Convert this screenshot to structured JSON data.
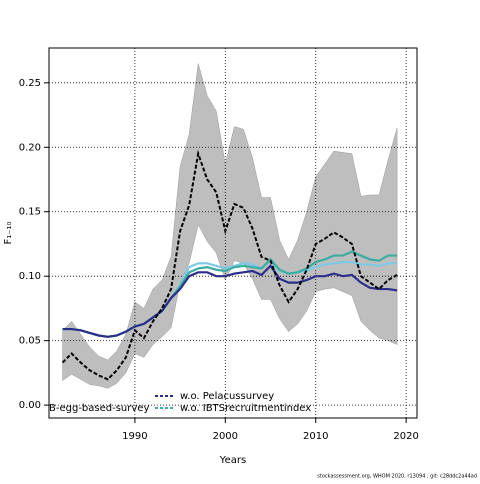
{
  "chart_data": {
    "type": "line",
    "x_label": "Years",
    "y_label": "F₁₋₁₀",
    "footer": "stockassessment.org, WHOM 2020, r13094 , git: c28ddc2a44ad",
    "x": [
      1982,
      1983,
      1984,
      1985,
      1986,
      1987,
      1988,
      1989,
      1990,
      1991,
      1992,
      1993,
      1994,
      1995,
      1996,
      1997,
      1998,
      1999,
      2000,
      2001,
      2002,
      2003,
      2004,
      2005,
      2006,
      2007,
      2008,
      2009,
      2010,
      2011,
      2012,
      2013,
      2014,
      2015,
      2016,
      2017,
      2018,
      2019
    ],
    "series": [
      {
        "color": "#000000",
        "dashed": true,
        "band_color": "#bebebe",
        "values": [
          0.033,
          0.04,
          0.033,
          0.027,
          0.023,
          0.02,
          0.027,
          0.037,
          0.058,
          0.052,
          0.065,
          0.075,
          0.09,
          0.135,
          0.155,
          0.195,
          0.175,
          0.165,
          0.135,
          0.156,
          0.153,
          0.137,
          0.115,
          0.112,
          0.093,
          0.08,
          0.09,
          0.105,
          0.125,
          0.129,
          0.134,
          0.13,
          0.125,
          0.1,
          0.095,
          0.09,
          0.097,
          0.101
        ],
        "upper": [
          0.058,
          0.065,
          0.055,
          0.045,
          0.038,
          0.035,
          0.042,
          0.055,
          0.08,
          0.075,
          0.09,
          0.097,
          0.115,
          0.185,
          0.21,
          0.265,
          0.24,
          0.228,
          0.187,
          0.216,
          0.214,
          0.192,
          0.161,
          0.161,
          0.128,
          0.113,
          0.128,
          0.15,
          0.177,
          0.187,
          0.197,
          0.196,
          0.195,
          0.162,
          0.163,
          0.163,
          0.19,
          0.215
        ],
        "lower": [
          0.019,
          0.024,
          0.02,
          0.016,
          0.015,
          0.013,
          0.017,
          0.025,
          0.04,
          0.037,
          0.047,
          0.053,
          0.06,
          0.095,
          0.11,
          0.14,
          0.127,
          0.118,
          0.097,
          0.112,
          0.11,
          0.098,
          0.082,
          0.082,
          0.067,
          0.057,
          0.063,
          0.073,
          0.088,
          0.09,
          0.091,
          0.088,
          0.085,
          0.065,
          0.058,
          0.052,
          0.05,
          0.047
        ]
      },
      {
        "name": "w.o. Pelacussurvey",
        "color": "#2b2f8a",
        "values": [
          0.059,
          0.059,
          0.058,
          0.056,
          0.054,
          0.053,
          0.054,
          0.057,
          0.061,
          0.063,
          0.068,
          0.073,
          0.083,
          0.09,
          0.1,
          0.103,
          0.103,
          0.1,
          0.1,
          0.102,
          0.103,
          0.104,
          0.101,
          0.108,
          0.098,
          0.095,
          0.095,
          0.097,
          0.1,
          0.1,
          0.102,
          0.1,
          0.101,
          0.095,
          0.091,
          0.09,
          0.09,
          0.089
        ]
      },
      {
        "name": "w.o. IBTSrecruitmentindex",
        "color": "#3aada0",
        "values": [
          0.059,
          0.059,
          0.058,
          0.056,
          0.054,
          0.053,
          0.054,
          0.057,
          0.061,
          0.063,
          0.068,
          0.073,
          0.083,
          0.092,
          0.103,
          0.106,
          0.107,
          0.105,
          0.104,
          0.107,
          0.108,
          0.107,
          0.106,
          0.113,
          0.105,
          0.102,
          0.103,
          0.106,
          0.111,
          0.113,
          0.116,
          0.116,
          0.119,
          0.116,
          0.113,
          0.112,
          0.116,
          0.116
        ]
      },
      {
        "name": "B-egg-based-survey",
        "color": "#7ec8e3",
        "values": [
          0.059,
          0.059,
          0.058,
          0.056,
          0.054,
          0.053,
          0.054,
          0.057,
          0.061,
          0.063,
          0.068,
          0.073,
          0.083,
          0.093,
          0.107,
          0.11,
          0.11,
          0.108,
          0.106,
          0.108,
          0.11,
          0.109,
          0.106,
          0.112,
          0.104,
          0.102,
          0.103,
          0.104,
          0.107,
          0.109,
          0.11,
          0.111,
          0.111,
          0.109,
          0.109,
          0.108,
          0.11,
          0.11
        ]
      }
    ],
    "xlim": [
      1980.5,
      2021.2
    ],
    "xticks": [
      1990,
      2000,
      2010,
      2020
    ],
    "ylim": [
      -0.01,
      0.277
    ],
    "yticks": [
      {
        "value": 0,
        "label": "0.00"
      },
      {
        "value": 0.05,
        "label": "0.05"
      },
      {
        "value": 0.1,
        "label": "0.10"
      },
      {
        "value": 0.15,
        "label": "0.15"
      },
      {
        "value": 0.2,
        "label": "0.20"
      },
      {
        "value": 0.25,
        "label": "0.25"
      }
    ],
    "grid": true
  }
}
